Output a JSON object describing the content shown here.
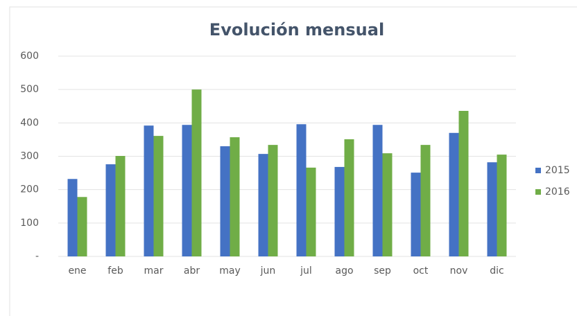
{
  "chart_data": {
    "type": "bar",
    "title": "Evolución mensual",
    "categories": [
      "ene",
      "feb",
      "mar",
      "abr",
      "may",
      "jun",
      "jul",
      "ago",
      "sep",
      "oct",
      "nov",
      "dic"
    ],
    "series": [
      {
        "name": "2015",
        "color": "#4472c4",
        "values": [
          232,
          276,
          392,
          394,
          330,
          307,
          396,
          268,
          394,
          251,
          370,
          282
        ]
      },
      {
        "name": "2016",
        "color": "#70ad47",
        "values": [
          178,
          301,
          361,
          500,
          357,
          334,
          266,
          351,
          309,
          334,
          436,
          305
        ]
      }
    ],
    "ylim": [
      0,
      600
    ],
    "yticks": [
      {
        "value": 0,
        "label": "-"
      },
      100,
      200,
      300,
      400,
      500,
      600
    ],
    "grid": true,
    "legend": "right"
  }
}
